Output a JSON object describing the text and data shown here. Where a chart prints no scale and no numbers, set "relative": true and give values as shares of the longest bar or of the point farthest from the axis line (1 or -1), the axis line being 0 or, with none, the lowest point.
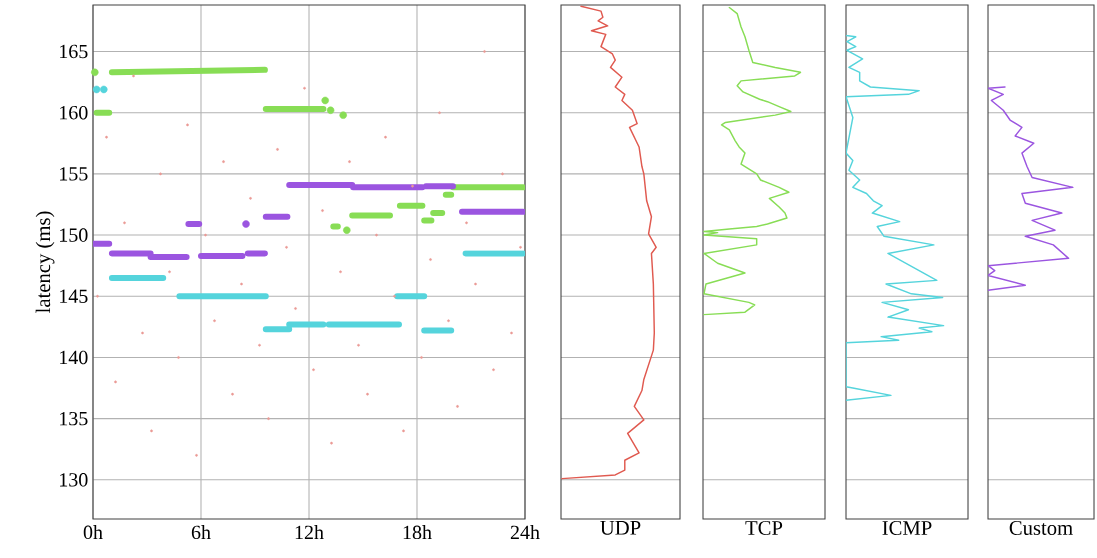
{
  "chart_data": [
    {
      "type": "scatter",
      "ylabel": "latency (ms)",
      "xlim": [
        0,
        24
      ],
      "ylim": [
        126.8,
        168.8
      ],
      "grid": true,
      "xticks": [
        {
          "value": 0,
          "label": "0h"
        },
        {
          "value": 6,
          "label": "6h"
        },
        {
          "value": 12,
          "label": "12h"
        },
        {
          "value": 18,
          "label": "18h"
        },
        {
          "value": 24,
          "label": "24h"
        }
      ],
      "yticks": [
        130,
        135,
        140,
        145,
        150,
        155,
        160,
        165
      ],
      "series": [
        {
          "type": "scatter",
          "color": "#eb9a96",
          "x": [
            0.25,
            0.75,
            1.25,
            1.75,
            2.25,
            2.75,
            3.25,
            3.75,
            4.25,
            4.75,
            5.25,
            5.75,
            6.25,
            6.75,
            7.25,
            7.75,
            8.25,
            8.75,
            9.25,
            9.75,
            10.25,
            10.75,
            11.25,
            11.75,
            12.25,
            12.75,
            13.25,
            13.75,
            14.25,
            14.75,
            15.25,
            15.75,
            16.25,
            16.75,
            17.25,
            17.75,
            18.25,
            18.75,
            19.25,
            19.75,
            20.25,
            20.75,
            21.25,
            21.75,
            22.25,
            22.75,
            23.25,
            23.75
          ],
          "values": [
            145,
            158,
            138,
            151,
            163,
            142,
            134,
            155,
            147,
            140,
            159,
            132,
            150,
            143,
            156,
            137,
            146,
            153,
            141,
            135,
            157,
            149,
            144,
            162,
            139,
            152,
            133,
            147,
            156,
            141,
            137,
            150,
            158,
            145,
            134,
            154,
            140,
            148,
            160,
            143,
            136,
            151,
            146,
            165,
            139,
            155,
            142,
            149
          ]
        },
        {
          "type": "line",
          "color": "#88dd55",
          "x": [
            0.2,
            0.9,
            null,
            1.05,
            9.55,
            null,
            9.6,
            12.8,
            null,
            13.35,
            13.6,
            null,
            14.4,
            16.5,
            null,
            17.05,
            18.3,
            null,
            18.4,
            18.8,
            null,
            18.9,
            19.4,
            null,
            19.6,
            19.9,
            null,
            20.0,
            23.9
          ],
          "values": [
            160.0,
            160.0,
            null,
            163.3,
            163.5,
            null,
            160.3,
            160.3,
            null,
            150.7,
            150.7,
            null,
            151.6,
            151.6,
            null,
            152.4,
            152.4,
            null,
            151.2,
            151.2,
            null,
            151.8,
            151.8,
            null,
            153.3,
            153.3,
            null,
            153.9,
            153.9
          ]
        },
        {
          "type": "line",
          "color": "#9b55e0",
          "x": [
            0,
            0.9,
            null,
            1.05,
            3.2,
            null,
            3.2,
            5.2,
            null,
            5.3,
            5.9,
            null,
            6.0,
            8.3,
            null,
            8.6,
            9.55,
            null,
            9.6,
            10.8,
            null,
            10.9,
            14.4,
            null,
            14.45,
            18.3,
            null,
            18.5,
            20.0,
            null,
            20.5,
            23.9
          ],
          "values": [
            149.3,
            149.3,
            null,
            148.5,
            148.5,
            null,
            148.2,
            148.2,
            null,
            150.9,
            150.9,
            null,
            148.3,
            148.3,
            null,
            148.5,
            148.5,
            null,
            151.5,
            151.5,
            null,
            154.1,
            154.1,
            null,
            153.9,
            153.9,
            null,
            154.0,
            154.0,
            null,
            151.9,
            151.9
          ]
        },
        {
          "type": "line",
          "color": "#55d4dc",
          "x": [
            1.05,
            3.9,
            null,
            4.8,
            9.6,
            null,
            9.6,
            10.9,
            null,
            10.9,
            12.8,
            null,
            13.1,
            17.0,
            null,
            16.9,
            18.4,
            null,
            18.4,
            19.9,
            null,
            20.7,
            23.9
          ],
          "values": [
            146.5,
            146.5,
            null,
            145.0,
            145.0,
            null,
            142.3,
            142.3,
            null,
            142.7,
            142.7,
            null,
            142.7,
            142.7,
            null,
            145.0,
            145.0,
            null,
            142.2,
            142.2,
            null,
            148.5,
            148.5
          ]
        },
        {
          "type": "scatter",
          "color": "#88dd55",
          "x": [
            0.1,
            12.9,
            13.2,
            13.9,
            14.1
          ],
          "values": [
            163.3,
            161.0,
            160.2,
            159.8,
            150.4
          ]
        },
        {
          "type": "scatter",
          "color": "#9b55e0",
          "x": [
            8.5
          ],
          "values": [
            150.9
          ]
        },
        {
          "type": "scatter",
          "color": "#55d4dc",
          "x": [
            0.2,
            0.6
          ],
          "values": [
            161.9,
            161.9
          ]
        }
      ]
    },
    {
      "type": "line",
      "orientation": "horizontal",
      "relative": true,
      "xlabel": "UDP",
      "ylim": [
        126.8,
        168.8
      ],
      "grid": "y",
      "tick_labels": false,
      "yticks": [
        130,
        135,
        140,
        145,
        150,
        155,
        160,
        165
      ],
      "series": [
        {
          "color": "#e05a50",
          "x": [
            130.1,
            130.4,
            130.8,
            131.6,
            132.2,
            133.8,
            134.9,
            136.0,
            137.3,
            138.2,
            140.6,
            142.0,
            146.0,
            148.5,
            149.0,
            150.1,
            151.5,
            152.8,
            155.0,
            155.6,
            157.2,
            158.8,
            159.1,
            160.2,
            161.0,
            161.5,
            162.1,
            162.9,
            163.7,
            164.3,
            164.8,
            165.4,
            166.4,
            166.7,
            167.1,
            167.5,
            167.8,
            168.3,
            168.7
          ],
          "values": [
            0.01,
            0.57,
            0.67,
            0.67,
            0.82,
            0.7,
            0.87,
            0.77,
            0.85,
            0.87,
            0.97,
            0.98,
            0.97,
            0.95,
            1.0,
            0.92,
            0.95,
            0.9,
            0.87,
            0.85,
            0.82,
            0.72,
            0.8,
            0.75,
            0.64,
            0.67,
            0.57,
            0.64,
            0.52,
            0.57,
            0.54,
            0.42,
            0.47,
            0.32,
            0.49,
            0.39,
            0.44,
            0.42,
            0.21
          ]
        }
      ]
    },
    {
      "type": "line",
      "orientation": "horizontal",
      "relative": true,
      "xlabel": "TCP",
      "ylim": [
        126.8,
        168.8
      ],
      "grid": "y",
      "tick_labels": false,
      "yticks": [
        130,
        135,
        140,
        145,
        150,
        155,
        160,
        165
      ],
      "series": [
        {
          "color": "#88dd55",
          "x": [
            143.5,
            143.7,
            144.3,
            144.5,
            145.2,
            146.0,
            146.9,
            147.7,
            148.5,
            149.2,
            149.7,
            150.0,
            150.2,
            150.3,
            150.5,
            150.7,
            150.9,
            151.4,
            151.8,
            152.3,
            153.0,
            153.5,
            153.9,
            154.5,
            155.0,
            155.8,
            156.7,
            157.2,
            157.7,
            158.6,
            159.0,
            159.2,
            159.8,
            160.1,
            160.5,
            160.9,
            161.1,
            161.7,
            162.2,
            162.6,
            163.0,
            163.3,
            163.7,
            164.1,
            165.1,
            166.2,
            167.0,
            168.1,
            168.6
          ],
          "values": [
            0.01,
            0.43,
            0.53,
            0.47,
            0.01,
            0.03,
            0.43,
            0.15,
            0.01,
            0.55,
            0.55,
            0.01,
            0.15,
            0.01,
            0.27,
            0.55,
            0.66,
            0.86,
            0.84,
            0.78,
            0.68,
            0.88,
            0.78,
            0.59,
            0.55,
            0.39,
            0.43,
            0.37,
            0.33,
            0.27,
            0.19,
            0.23,
            0.74,
            0.9,
            0.78,
            0.66,
            0.58,
            0.41,
            0.35,
            0.39,
            0.94,
            1.0,
            0.74,
            0.51,
            0.47,
            0.43,
            0.39,
            0.35,
            0.27
          ]
        }
      ]
    },
    {
      "type": "line",
      "orientation": "horizontal",
      "relative": true,
      "xlabel": "ICMP",
      "ylim": [
        126.8,
        168.8
      ],
      "grid": "y",
      "tick_labels": false,
      "yticks": [
        130,
        135,
        140,
        145,
        150,
        155,
        160,
        165
      ],
      "series": [
        {
          "color": "#55d4dc",
          "x": [
            136.5,
            136.9,
            137.5,
            137.6,
            141.2,
            141.4,
            141.7,
            142.1,
            142.4,
            142.6,
            143.3,
            143.9,
            144.5,
            144.9,
            145.2,
            146.0,
            146.3,
            148.5,
            149.2,
            149.9,
            150.7,
            151.1,
            151.8,
            152.4,
            152.8,
            153.4,
            153.9,
            154.5,
            155.3,
            156.1,
            156.7,
            159.6,
            161.3,
            161.5,
            161.8,
            162.1,
            162.6,
            163.3,
            163.7,
            164.4,
            165.1,
            165.4,
            165.8,
            166.2,
            166.3
          ],
          "values": [
            0.0,
            0.46,
            0.07,
            0.0,
            0.0,
            0.54,
            0.36,
            0.88,
            0.75,
            1.0,
            0.43,
            0.64,
            0.37,
            0.99,
            0.67,
            0.41,
            0.93,
            0.43,
            0.9,
            0.39,
            0.32,
            0.55,
            0.27,
            0.37,
            0.28,
            0.21,
            0.07,
            0.14,
            0.03,
            0.07,
            0.0,
            0.07,
            0.0,
            0.64,
            0.75,
            0.25,
            0.14,
            0.14,
            0.03,
            0.17,
            0.01,
            0.1,
            0.01,
            0.1,
            0.0
          ]
        }
      ]
    },
    {
      "type": "line",
      "orientation": "horizontal",
      "relative": true,
      "xlabel": "Custom",
      "ylim": [
        126.8,
        168.8
      ],
      "grid": "y",
      "tick_labels": false,
      "yticks": [
        130,
        135,
        140,
        145,
        150,
        155,
        160,
        165
      ],
      "series": [
        {
          "color": "#9b55e0",
          "x": [
            145.5,
            145.9,
            146.7,
            147.1,
            147.5,
            148.1,
            149.2,
            149.9,
            150.4,
            151.2,
            151.8,
            152.6,
            153.4,
            153.9,
            154.7,
            155.6,
            156.7,
            157.5,
            158.1,
            158.8,
            159.4,
            160.2,
            161.0,
            161.5,
            162.0,
            162.1
          ],
          "values": [
            0.0,
            0.44,
            0.0,
            0.08,
            0.0,
            0.95,
            0.77,
            0.44,
            0.79,
            0.52,
            0.87,
            0.44,
            0.4,
            1.0,
            0.52,
            0.46,
            0.4,
            0.54,
            0.32,
            0.4,
            0.26,
            0.18,
            0.04,
            0.18,
            0.0,
            0.2
          ]
        }
      ]
    }
  ]
}
